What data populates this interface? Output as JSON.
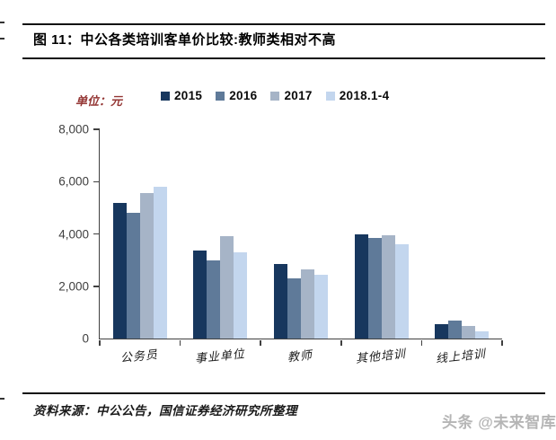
{
  "header": {
    "title": "图 11：中公各类培训客单价比较:教师类相对不高"
  },
  "unit_label": "单位：元",
  "footer": {
    "source": "资料来源：中公公告，国信证券经济研究所整理",
    "watermark": "头条 @未来智库"
  },
  "colors": {
    "unit_label": "#943634",
    "axis": "#404040",
    "watermark": "#b5b5b5",
    "series": [
      "#17375E",
      "#5F7A99",
      "#A6B4C7",
      "#C3D6EE"
    ]
  },
  "chart_data": {
    "type": "bar",
    "title": "中公各类培训客单价比较:教师类相对不高",
    "unit": "元",
    "categories": [
      "公务员",
      "事业单位",
      "教师",
      "其他培训",
      "线上培训"
    ],
    "series": [
      {
        "name": "2015",
        "color": "#17375E",
        "values": [
          5200,
          3350,
          2850,
          4000,
          550
        ]
      },
      {
        "name": "2016",
        "color": "#5F7A99",
        "values": [
          4800,
          3000,
          2300,
          3850,
          700
        ]
      },
      {
        "name": "2017",
        "color": "#A6B4C7",
        "values": [
          5550,
          3900,
          2650,
          3950,
          480
        ]
      },
      {
        "name": "2018.1-4",
        "color": "#C3D6EE",
        "values": [
          5800,
          3300,
          2450,
          3600,
          280
        ]
      }
    ],
    "ylim": [
      0,
      8000
    ],
    "yticks": [
      0,
      2000,
      4000,
      6000,
      8000
    ],
    "ytick_labels": [
      "0",
      "2,000",
      "4,000",
      "6,000",
      "8,000"
    ],
    "grid": false,
    "legend_position": "top"
  }
}
